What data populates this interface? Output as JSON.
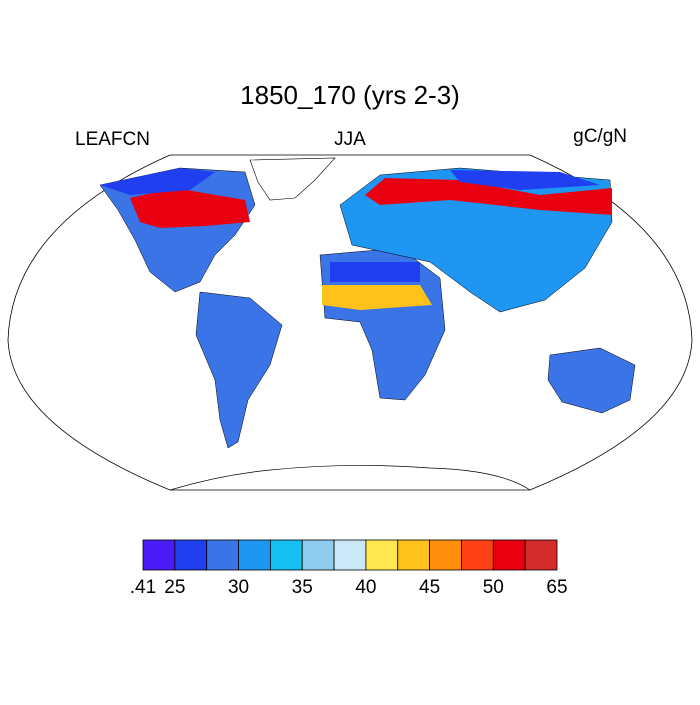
{
  "title": "1850_170 (yrs 2-3)",
  "left_label": "LEAFCN",
  "center_label": "JJA",
  "right_label": "gC/gN",
  "colorbar": {
    "colors": [
      "#4b1cf5",
      "#1f3ff0",
      "#3a74e6",
      "#1e96f2",
      "#15bff2",
      "#8fccee",
      "#cbe8f8",
      "#ffe84f",
      "#ffc21a",
      "#ff8f0d",
      "#ff4016",
      "#e80010",
      "#d42c2c"
    ],
    "labels": [
      ".41",
      "25",
      null,
      "30",
      null,
      "35",
      null,
      "40",
      null,
      "45",
      null,
      "50",
      null,
      "65"
    ]
  }
}
